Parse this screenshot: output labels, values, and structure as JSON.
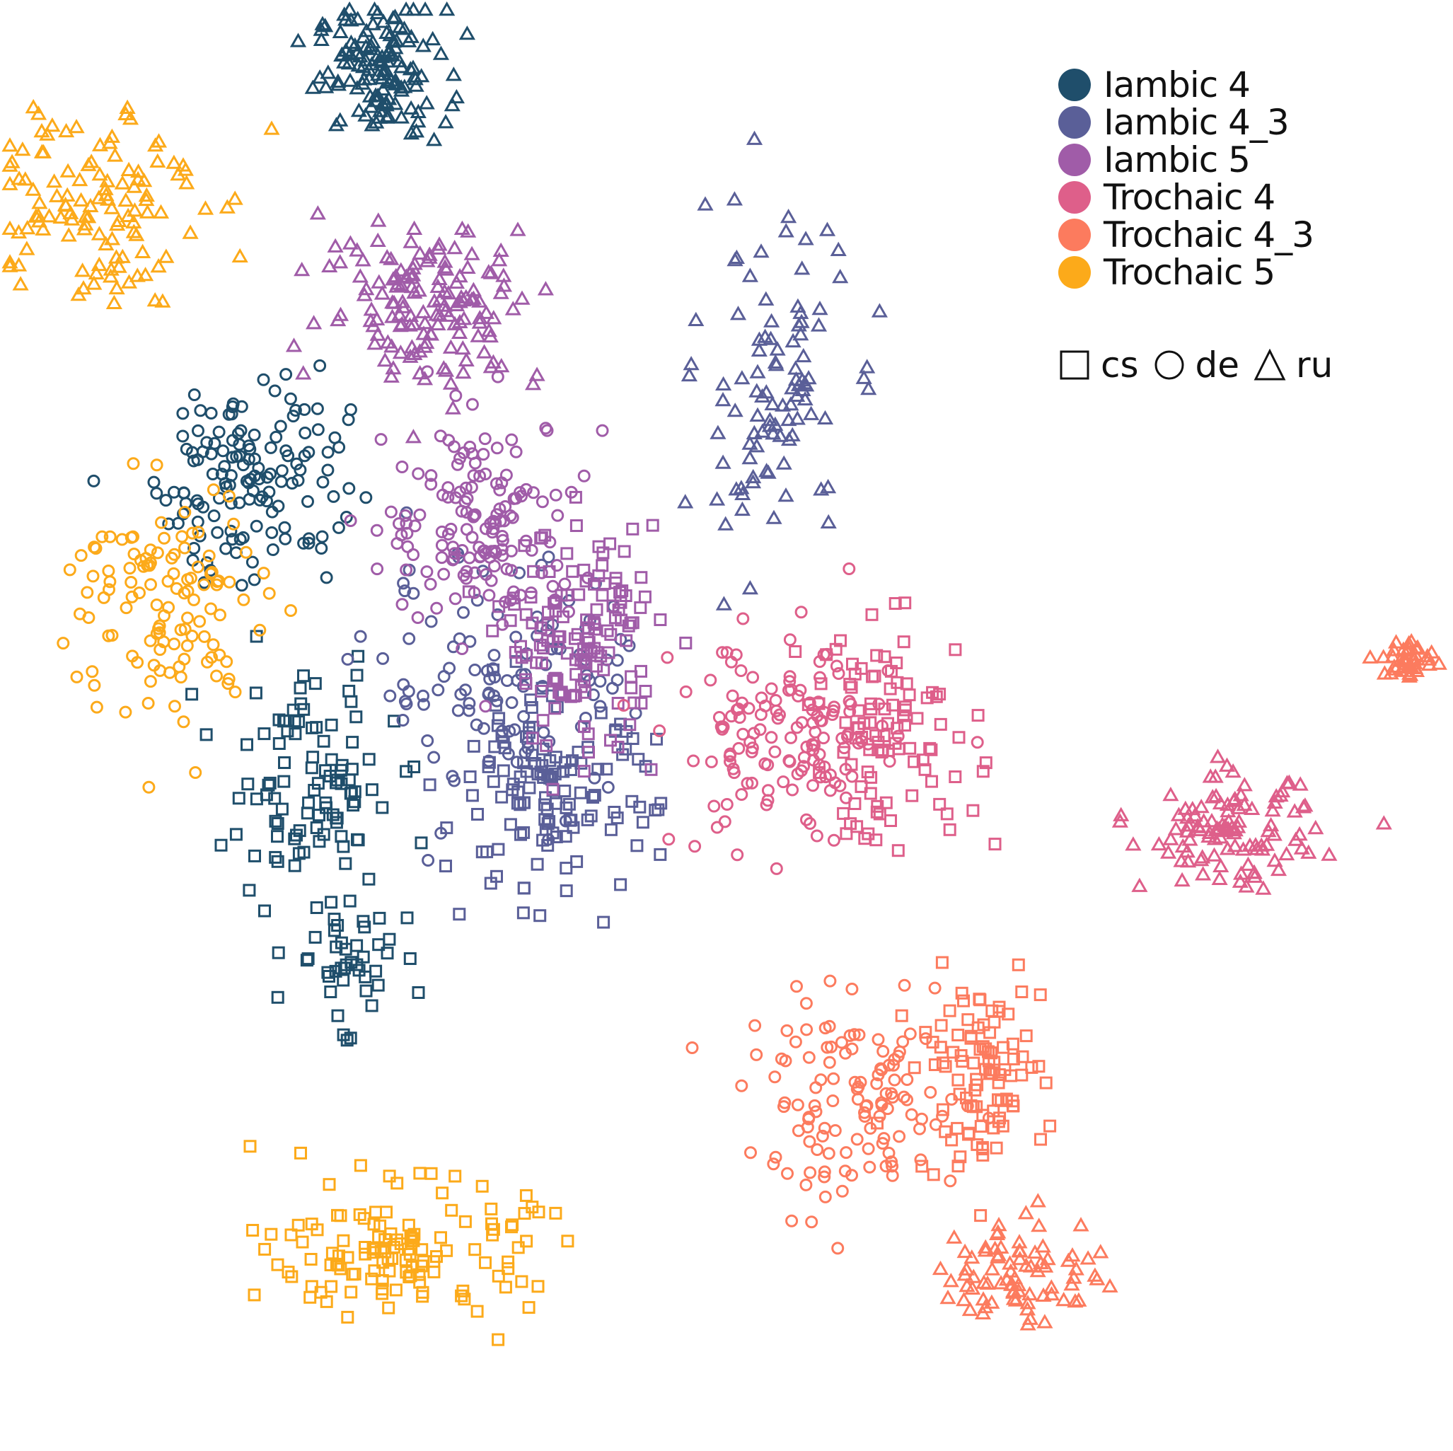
{
  "chart_data": {
    "type": "scatter",
    "title": "",
    "xlabel": "",
    "ylabel": "",
    "axes_visible": false,
    "grid": false,
    "legend_position": "top-right",
    "xlim": [
      0,
      100
    ],
    "ylim": [
      0,
      100
    ],
    "color_legend": [
      {
        "label": "Iambic 4",
        "color": "#1f4e6b"
      },
      {
        "label": "Iambic 4_3",
        "color": "#5a5f98"
      },
      {
        "label": "Iambic 5",
        "color": "#a05ca8"
      },
      {
        "label": "Trochaic 4",
        "color": "#de5f8a"
      },
      {
        "label": "Trochaic 4_3",
        "color": "#fc7b5e"
      },
      {
        "label": "Trochaic 5",
        "color": "#fcaa1a"
      }
    ],
    "shape_legend": [
      {
        "label": "cs",
        "shape": "square"
      },
      {
        "label": "de",
        "shape": "circle"
      },
      {
        "label": "ru",
        "shape": "triangle"
      }
    ],
    "clusters": [
      {
        "series": "Iambic 4",
        "language": "ru",
        "center": [
          26.0,
          95.5
        ],
        "spread": [
          3.0,
          3.0
        ],
        "count": 130
      },
      {
        "series": "Iambic 4",
        "language": "de",
        "center": [
          17.0,
          67.5
        ],
        "spread": [
          4.5,
          5.0
        ],
        "count": 140
      },
      {
        "series": "Iambic 4",
        "language": "cs",
        "center": [
          21.0,
          46.0
        ],
        "spread": [
          4.0,
          5.0
        ],
        "count": 100
      },
      {
        "series": "Iambic 4",
        "language": "cs",
        "center": [
          23.5,
          34.0
        ],
        "spread": [
          2.5,
          3.0
        ],
        "count": 45
      },
      {
        "series": "Iambic 4_3",
        "language": "ru",
        "center": [
          53.0,
          73.0
        ],
        "spread": [
          3.5,
          8.0
        ],
        "count": 100
      },
      {
        "series": "Iambic 4_3",
        "language": "de",
        "center": [
          35.0,
          53.0
        ],
        "spread": [
          6.5,
          5.5
        ],
        "count": 110
      },
      {
        "series": "Iambic 4_3",
        "language": "cs",
        "center": [
          37.5,
          45.0
        ],
        "spread": [
          5.0,
          4.5
        ],
        "count": 130
      },
      {
        "series": "Iambic 5",
        "language": "ru",
        "center": [
          29.5,
          79.5
        ],
        "spread": [
          5.0,
          3.8
        ],
        "count": 150
      },
      {
        "series": "Iambic 5",
        "language": "de",
        "center": [
          33.0,
          64.0
        ],
        "spread": [
          4.5,
          5.0
        ],
        "count": 150
      },
      {
        "series": "Iambic 5",
        "language": "cs",
        "center": [
          40.0,
          56.0
        ],
        "spread": [
          3.5,
          5.0
        ],
        "count": 140
      },
      {
        "series": "Trochaic 4",
        "language": "ru",
        "center": [
          85.0,
          42.5
        ],
        "spread": [
          4.0,
          2.5
        ],
        "count": 110
      },
      {
        "series": "Trochaic 4",
        "language": "de",
        "center": [
          54.0,
          48.5
        ],
        "spread": [
          5.0,
          5.0
        ],
        "count": 140
      },
      {
        "series": "Trochaic 4",
        "language": "cs",
        "center": [
          61.5,
          49.5
        ],
        "spread": [
          4.0,
          5.0
        ],
        "count": 100
      },
      {
        "series": "Trochaic 4_3",
        "language": "ru",
        "center": [
          97.5,
          54.5
        ],
        "spread": [
          1.2,
          1.0
        ],
        "count": 40
      },
      {
        "series": "Trochaic 4_3",
        "language": "ru",
        "center": [
          70.5,
          12.0
        ],
        "spread": [
          3.8,
          2.5
        ],
        "count": 80
      },
      {
        "series": "Trochaic 4_3",
        "language": "de",
        "center": [
          59.0,
          23.5
        ],
        "spread": [
          5.0,
          4.5
        ],
        "count": 120
      },
      {
        "series": "Trochaic 4_3",
        "language": "cs",
        "center": [
          67.5,
          25.5
        ],
        "spread": [
          3.0,
          4.5
        ],
        "count": 100
      },
      {
        "series": "Trochaic 5",
        "language": "ru",
        "center": [
          6.0,
          87.0
        ],
        "spread": [
          5.0,
          5.0
        ],
        "count": 120
      },
      {
        "series": "Trochaic 5",
        "language": "de",
        "center": [
          11.0,
          58.0
        ],
        "spread": [
          4.5,
          6.0
        ],
        "count": 120
      },
      {
        "series": "Trochaic 5",
        "language": "cs",
        "center": [
          27.5,
          13.5
        ],
        "spread": [
          6.0,
          3.0
        ],
        "count": 130
      }
    ]
  }
}
